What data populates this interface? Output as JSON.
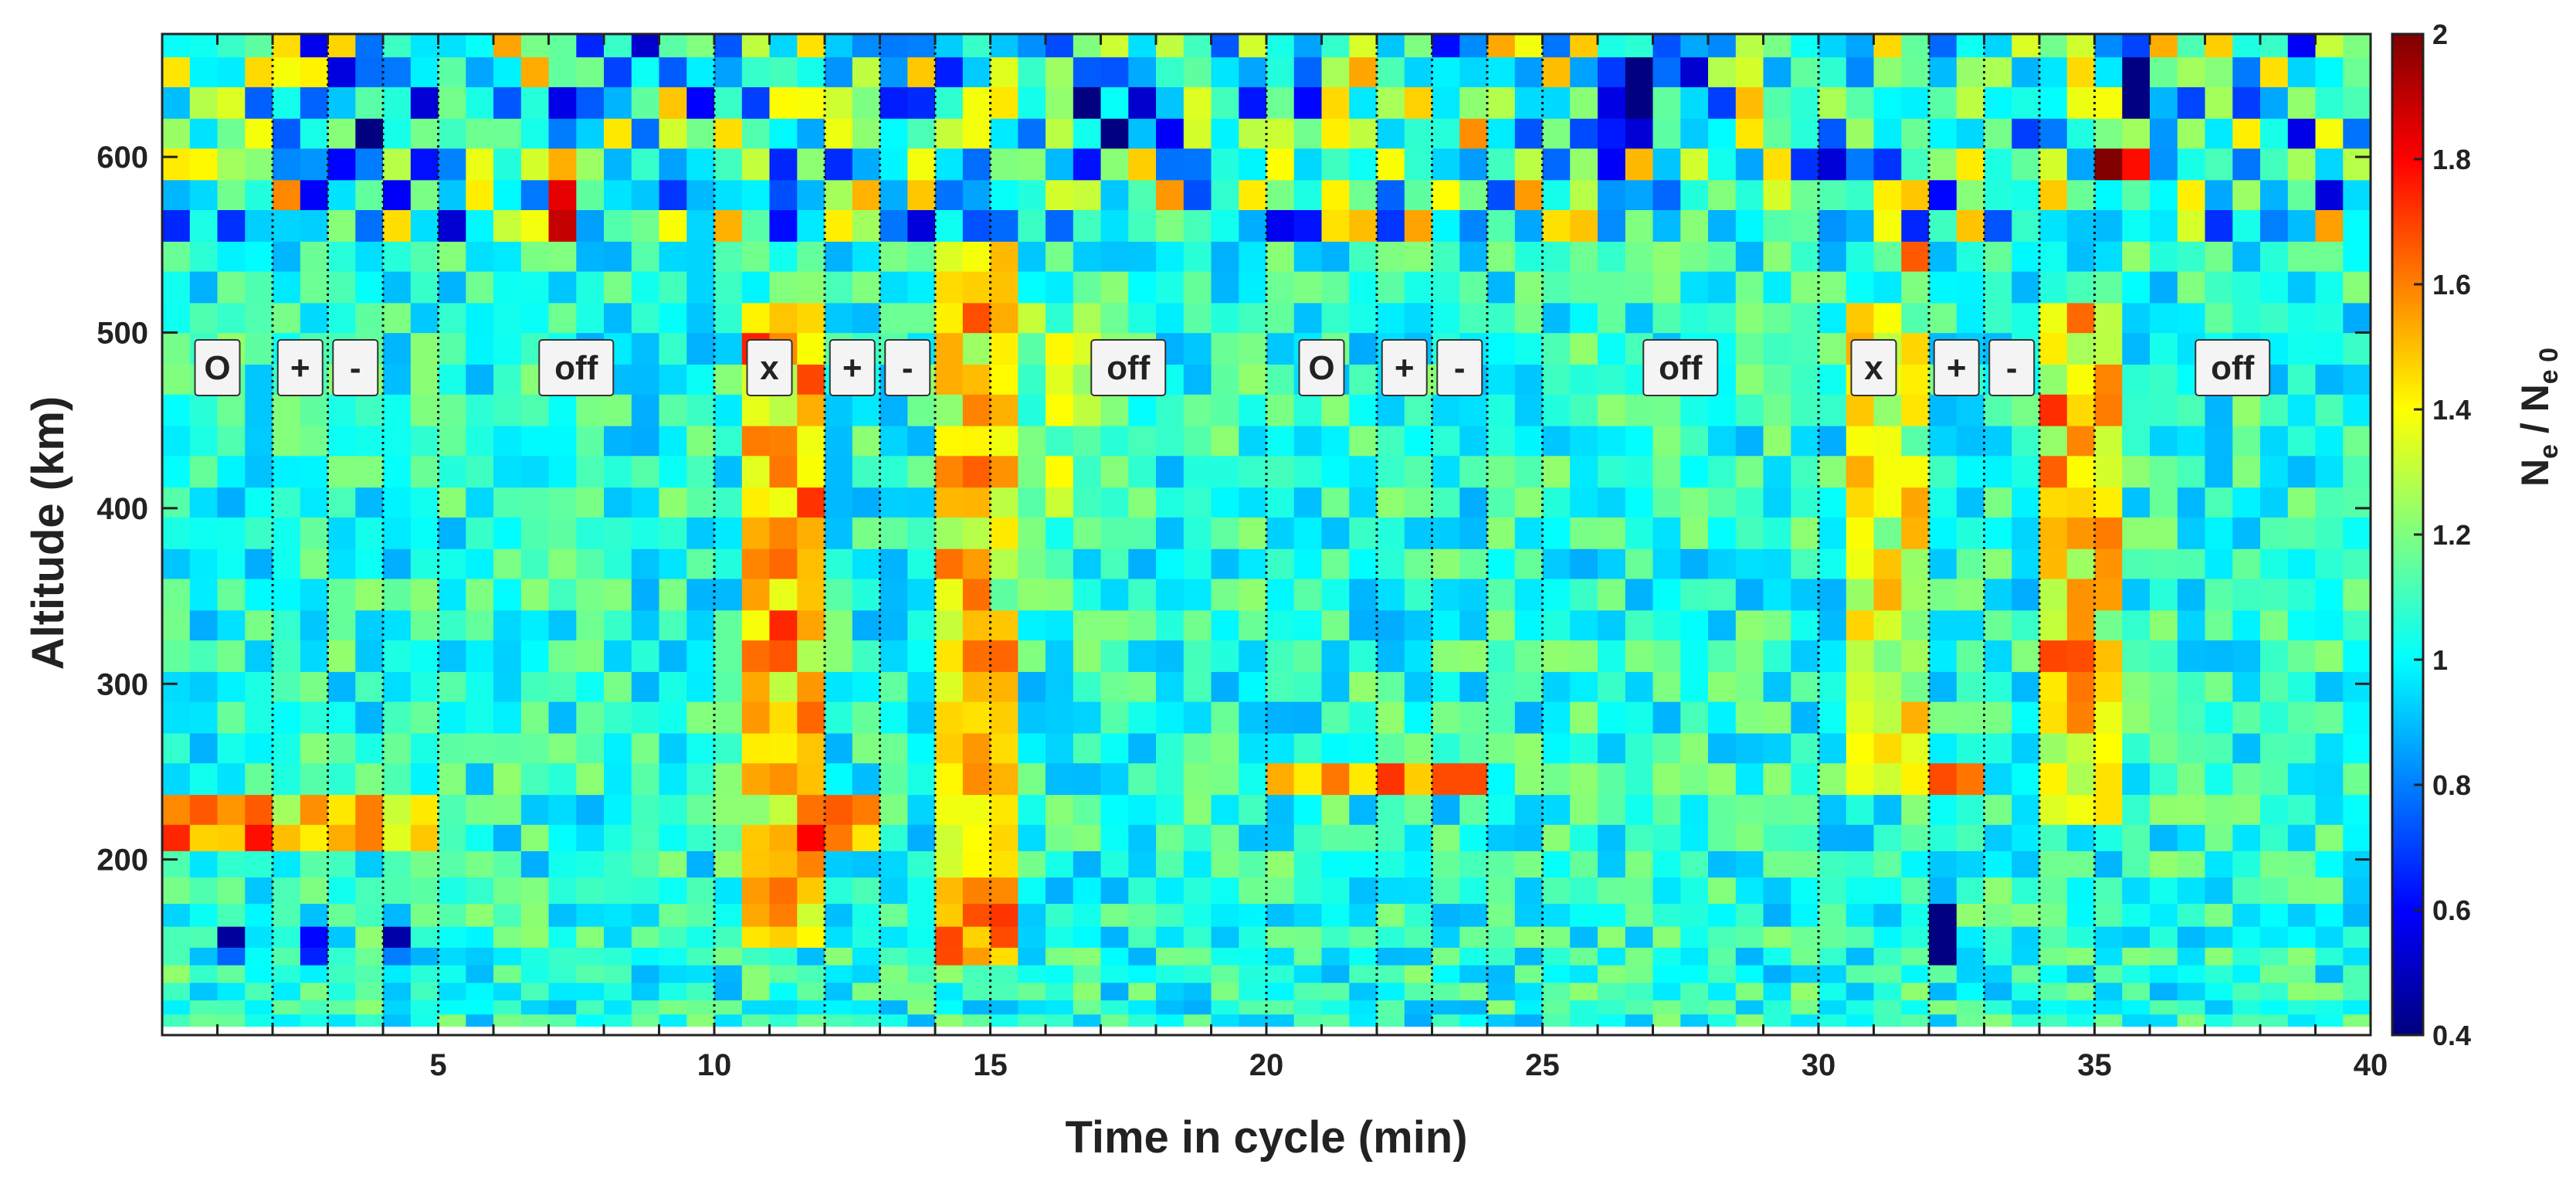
{
  "chart_data": {
    "type": "heatmap",
    "title": "",
    "xlabel": "Time in cycle (min)",
    "ylabel": "Altitude (km)",
    "xlim": [
      0,
      40
    ],
    "ylim": [
      100,
      670
    ],
    "x_ticks": [
      5,
      10,
      15,
      20,
      25,
      30,
      35,
      40
    ],
    "y_ticks": [
      200,
      300,
      400,
      500,
      600
    ],
    "colorbar": {
      "label_main": "N",
      "label_sub_num": "e",
      "label_sep": " / N",
      "label_sub_den": "e 0",
      "range": [
        0.4,
        2.0
      ],
      "ticks": [
        0.4,
        0.6,
        0.8,
        1,
        1.2,
        1.4,
        1.6,
        1.8,
        2
      ],
      "colormap": "jet",
      "colors": [
        "#00007f",
        "#0000ff",
        "#007fff",
        "#00ffff",
        "#7fff7f",
        "#ffff00",
        "#ff7f00",
        "#ff0000",
        "#7f0000"
      ]
    },
    "phase_boundaries_min": [
      2,
      3,
      4,
      5,
      10,
      12,
      13,
      14,
      15,
      20,
      22,
      23,
      24,
      25,
      30,
      32,
      33,
      34,
      35
    ],
    "phase_labels": [
      {
        "text": "O",
        "x": 1.0
      },
      {
        "text": "+",
        "x": 2.5
      },
      {
        "text": "-",
        "x": 3.5
      },
      {
        "text": "off",
        "x": 7.5
      },
      {
        "text": "x",
        "x": 11.0
      },
      {
        "text": "+",
        "x": 12.5
      },
      {
        "text": "-",
        "x": 13.5
      },
      {
        "text": "off",
        "x": 17.5
      },
      {
        "text": "O",
        "x": 21.0
      },
      {
        "text": "+",
        "x": 22.5
      },
      {
        "text": "-",
        "x": 23.5
      },
      {
        "text": "off",
        "x": 27.5
      },
      {
        "text": "x",
        "x": 31.0
      },
      {
        "text": "+",
        "x": 32.5
      },
      {
        "text": "-",
        "x": 33.5
      },
      {
        "text": "off",
        "x": 37.5
      }
    ],
    "phase_label_altitude_km": 480,
    "grid": {
      "time_bin_min": 0.5,
      "altitude_levels_km": [
        105,
        112,
        120,
        130,
        140,
        150,
        162,
        175,
        190,
        205,
        220,
        237,
        255,
        272,
        290,
        307,
        325,
        342,
        360,
        377,
        395,
        412,
        430,
        447,
        465,
        482,
        500,
        517,
        535,
        552,
        570,
        587,
        605,
        622,
        640,
        657,
        670
      ]
    },
    "enhancements": [
      {
        "t0": 0,
        "t1": 5,
        "a0": 210,
        "a1": 230,
        "amp": 0.55
      },
      {
        "t0": 10.5,
        "t1": 12,
        "a0": 150,
        "a1": 520,
        "amp": 0.5
      },
      {
        "t0": 12,
        "t1": 13,
        "a0": 210,
        "a1": 235,
        "amp": 0.55
      },
      {
        "t0": 14,
        "t1": 15.5,
        "a0": 140,
        "a1": 560,
        "amp": 0.45
      },
      {
        "t0": 15.5,
        "t1": 17,
        "a0": 380,
        "a1": 520,
        "amp": 0.2
      },
      {
        "t0": 20,
        "t1": 24,
        "a0": 230,
        "a1": 250,
        "amp": 0.5
      },
      {
        "t0": 30.5,
        "t1": 32,
        "a0": 230,
        "a1": 520,
        "amp": 0.35
      },
      {
        "t0": 32,
        "t1": 33,
        "a0": 230,
        "a1": 250,
        "amp": 0.55
      },
      {
        "t0": 34,
        "t1": 35.5,
        "a0": 220,
        "a1": 520,
        "amp": 0.45
      },
      {
        "t0": 31.5,
        "t1": 32,
        "a0": 530,
        "a1": 560,
        "amp": 0.45
      },
      {
        "t0": 35,
        "t1": 36,
        "a0": 580,
        "a1": 610,
        "amp": 0.6
      },
      {
        "t0": 15,
        "t1": 15.5,
        "a0": 580,
        "a1": 610,
        "amp": 0.65
      },
      {
        "t0": 7,
        "t1": 7.5,
        "a0": 560,
        "a1": 590,
        "amp": 0.6
      }
    ],
    "depletions": [
      {
        "t0": 1,
        "t1": 1.5,
        "a0": 140,
        "a1": 165,
        "amp": 0.5
      },
      {
        "t0": 2.5,
        "t1": 3,
        "a0": 140,
        "a1": 165,
        "amp": 0.5
      },
      {
        "t0": 4,
        "t1": 4.5,
        "a0": 145,
        "a1": 165,
        "amp": 0.5
      },
      {
        "t0": 16.5,
        "t1": 18.5,
        "a0": 600,
        "a1": 650,
        "amp": 0.35
      },
      {
        "t0": 25.5,
        "t1": 28,
        "a0": 600,
        "a1": 650,
        "amp": 0.3
      },
      {
        "t0": 3.5,
        "t1": 4,
        "a0": 590,
        "a1": 615,
        "amp": 0.5
      },
      {
        "t0": 35.5,
        "t1": 36,
        "a0": 620,
        "a1": 650,
        "amp": 0.5
      },
      {
        "t0": 32,
        "t1": 32.5,
        "a0": 145,
        "a1": 175,
        "amp": 0.55
      }
    ],
    "base_value": 1.05,
    "noise_amplitude": 0.18
  }
}
